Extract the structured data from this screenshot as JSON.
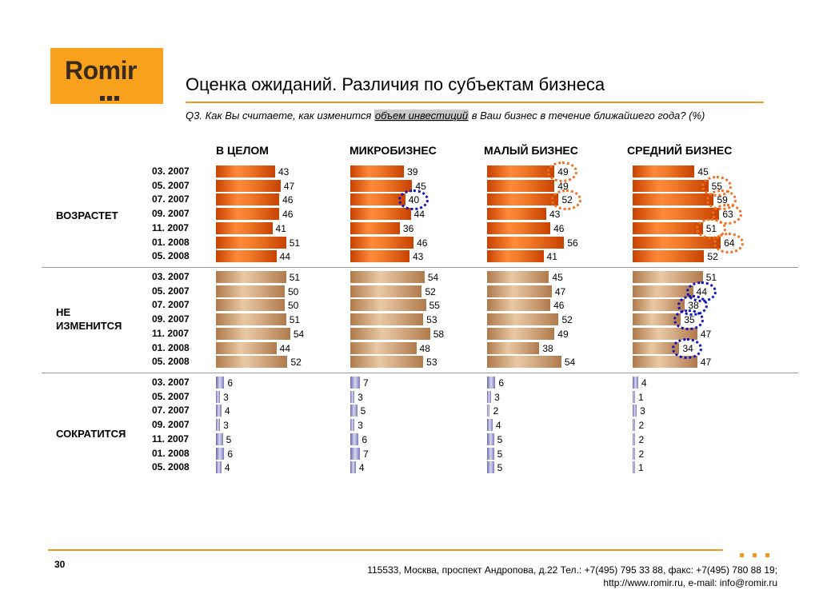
{
  "logo": {
    "text": "Romir"
  },
  "title": "Оценка ожиданий. Различия по субъектам бизнеса",
  "question": {
    "before": "Q3. Как Вы считаете, как изменится ",
    "highlight": "объем инвестиций",
    "after": " в Ваш бизнес в течение ближайшего года? (%)"
  },
  "columns": [
    "В ЦЕЛОМ",
    "МИКРОБИЗНЕС",
    "МАЛЫЙ БИЗНЕС",
    "СРЕДНИЙ БИЗНЕС"
  ],
  "chart_data": {
    "type": "bar",
    "categories": [
      "03. 2007",
      "05. 2007",
      "07. 2007",
      "09. 2007",
      "11. 2007",
      "01. 2008",
      "05. 2008"
    ],
    "groups": [
      {
        "label": "ВОЗРАСТЕТ",
        "color": "orange",
        "series": [
          {
            "name": "В ЦЕЛОМ",
            "values": [
              43,
              47,
              46,
              46,
              41,
              51,
              44
            ]
          },
          {
            "name": "МИКРОБИЗНЕС",
            "values": [
              39,
              45,
              40,
              44,
              36,
              46,
              43
            ]
          },
          {
            "name": "МАЛЫЙ БИЗНЕС",
            "values": [
              49,
              49,
              52,
              43,
              46,
              56,
              41
            ]
          },
          {
            "name": "СРЕДНИЙ БИЗНЕС",
            "values": [
              45,
              55,
              59,
              63,
              51,
              64,
              52
            ]
          }
        ]
      },
      {
        "label": "НЕ ИЗМЕНИТСЯ",
        "color": "tan",
        "series": [
          {
            "name": "В ЦЕЛОМ",
            "values": [
              51,
              50,
              50,
              51,
              54,
              44,
              52
            ]
          },
          {
            "name": "МИКРОБИЗНЕС",
            "values": [
              54,
              52,
              55,
              53,
              58,
              48,
              53
            ]
          },
          {
            "name": "МАЛЫЙ БИЗНЕС",
            "values": [
              45,
              47,
              46,
              52,
              49,
              38,
              54
            ]
          },
          {
            "name": "СРЕДНИЙ БИЗНЕС",
            "values": [
              51,
              44,
              38,
              35,
              47,
              34,
              47
            ]
          }
        ]
      },
      {
        "label": "СОКРАТИТСЯ",
        "color": "violet",
        "series": [
          {
            "name": "В ЦЕЛОМ",
            "values": [
              6,
              3,
              4,
              3,
              5,
              6,
              4
            ]
          },
          {
            "name": "МИКРОБИЗНЕС",
            "values": [
              7,
              3,
              5,
              3,
              6,
              7,
              4
            ]
          },
          {
            "name": "МАЛЫЙ БИЗНЕС",
            "values": [
              6,
              3,
              2,
              4,
              5,
              5,
              5
            ]
          },
          {
            "name": "СРЕДНИЙ БИЗНЕС",
            "values": [
              4,
              1,
              3,
              2,
              2,
              2,
              1
            ]
          }
        ]
      }
    ],
    "highlights": [
      {
        "group": 0,
        "series": 1,
        "index": 2,
        "color": "blue"
      },
      {
        "group": 0,
        "series": 2,
        "index": 0,
        "color": "orange"
      },
      {
        "group": 0,
        "series": 2,
        "index": 2,
        "color": "orange"
      },
      {
        "group": 0,
        "series": 3,
        "index": 1,
        "color": "orange"
      },
      {
        "group": 0,
        "series": 3,
        "index": 2,
        "color": "orange"
      },
      {
        "group": 0,
        "series": 3,
        "index": 3,
        "color": "orange"
      },
      {
        "group": 0,
        "series": 3,
        "index": 4,
        "color": "orange"
      },
      {
        "group": 0,
        "series": 3,
        "index": 5,
        "color": "orange"
      },
      {
        "group": 1,
        "series": 3,
        "index": 1,
        "color": "blue"
      },
      {
        "group": 1,
        "series": 3,
        "index": 2,
        "color": "blue"
      },
      {
        "group": 1,
        "series": 3,
        "index": 3,
        "color": "blue"
      },
      {
        "group": 1,
        "series": 3,
        "index": 5,
        "color": "blue"
      }
    ],
    "colors": {
      "orange": "#e0641a",
      "tan": "#d8b08a",
      "violet": "#8c8cc8"
    }
  },
  "footer": {
    "page": "30",
    "address": "115533, Москва, проспект Андропова, д.22   Тел.: +7(495) 795 33 88, факс: +7(495) 780 88 19;",
    "web": "http://www.romir.ru, e-mail: info@romir.ru"
  }
}
